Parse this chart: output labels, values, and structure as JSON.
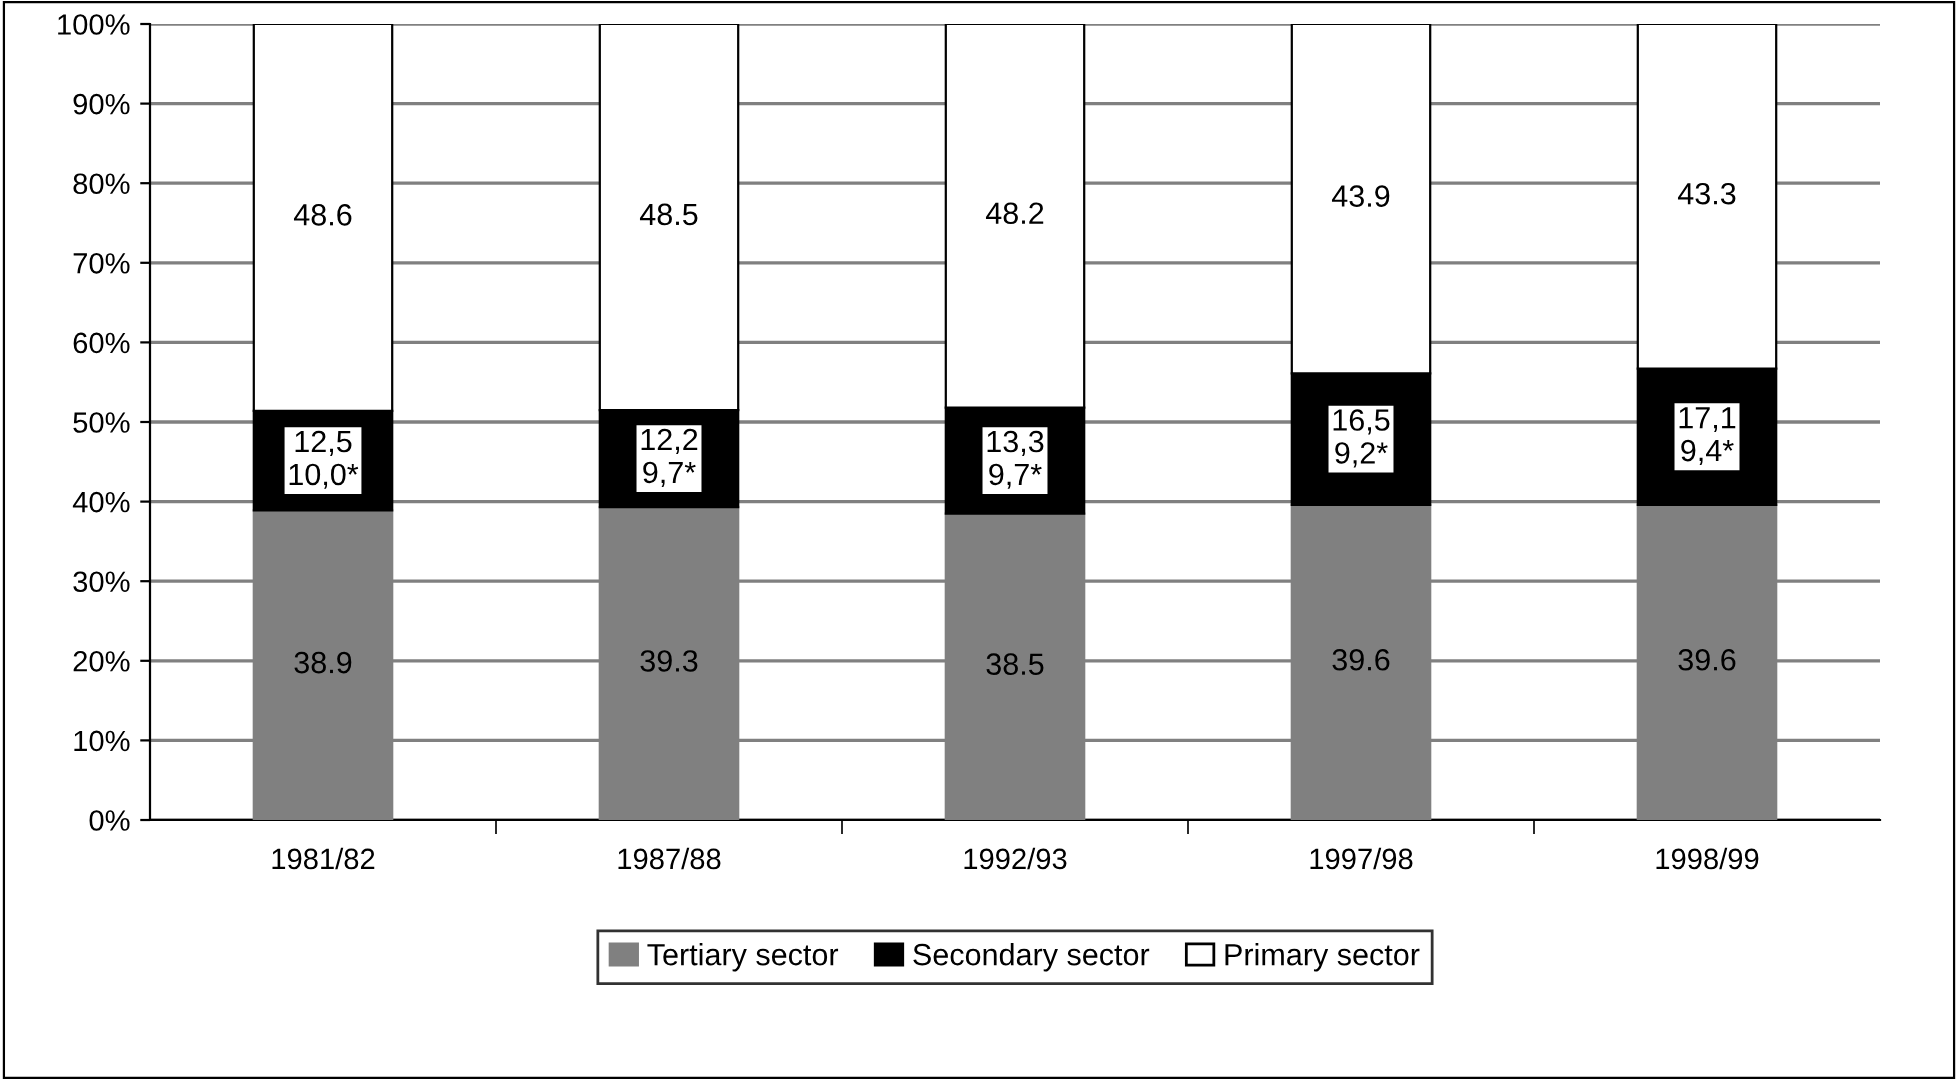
{
  "chart_data": {
    "type": "bar",
    "stacked": true,
    "categories": [
      "1981/82",
      "1987/88",
      "1992/93",
      "1997/98",
      "1998/99"
    ],
    "series": [
      {
        "name": "Tertiary sector",
        "color": "#808080",
        "values": [
          38.9,
          39.3,
          38.5,
          39.6,
          39.6
        ],
        "value_labels": [
          "38.9",
          "39.3",
          "38.5",
          "39.6",
          "39.6"
        ]
      },
      {
        "name": "Secondary sector",
        "color": "#000000",
        "values": [
          12.5,
          12.2,
          13.3,
          16.5,
          17.1
        ],
        "value_labels": [
          "12,5\n10,0*",
          "12,2\n9,7*",
          "13,3\n9,7*",
          "16,5\n9,2*",
          "17,1\n9,4*"
        ]
      },
      {
        "name": "Primary sector",
        "color": "#ffffff",
        "values": [
          48.6,
          48.5,
          48.2,
          43.9,
          43.3
        ],
        "value_labels": [
          "48.6",
          "48.5",
          "48.2",
          "43.9",
          "43.3"
        ]
      }
    ],
    "ylim": [
      0,
      100
    ],
    "yticks": [
      {
        "value": 0,
        "label": "0%"
      },
      {
        "value": 10,
        "label": "10%"
      },
      {
        "value": 20,
        "label": "20%"
      },
      {
        "value": 30,
        "label": "30%"
      },
      {
        "value": 40,
        "label": "40%"
      },
      {
        "value": 50,
        "label": "50%"
      },
      {
        "value": 60,
        "label": "60%"
      },
      {
        "value": 70,
        "label": "70%"
      },
      {
        "value": 80,
        "label": "80%"
      },
      {
        "value": 90,
        "label": "90%"
      },
      {
        "value": 100,
        "label": "100%"
      }
    ],
    "grid": "y",
    "legend": "bottom"
  }
}
